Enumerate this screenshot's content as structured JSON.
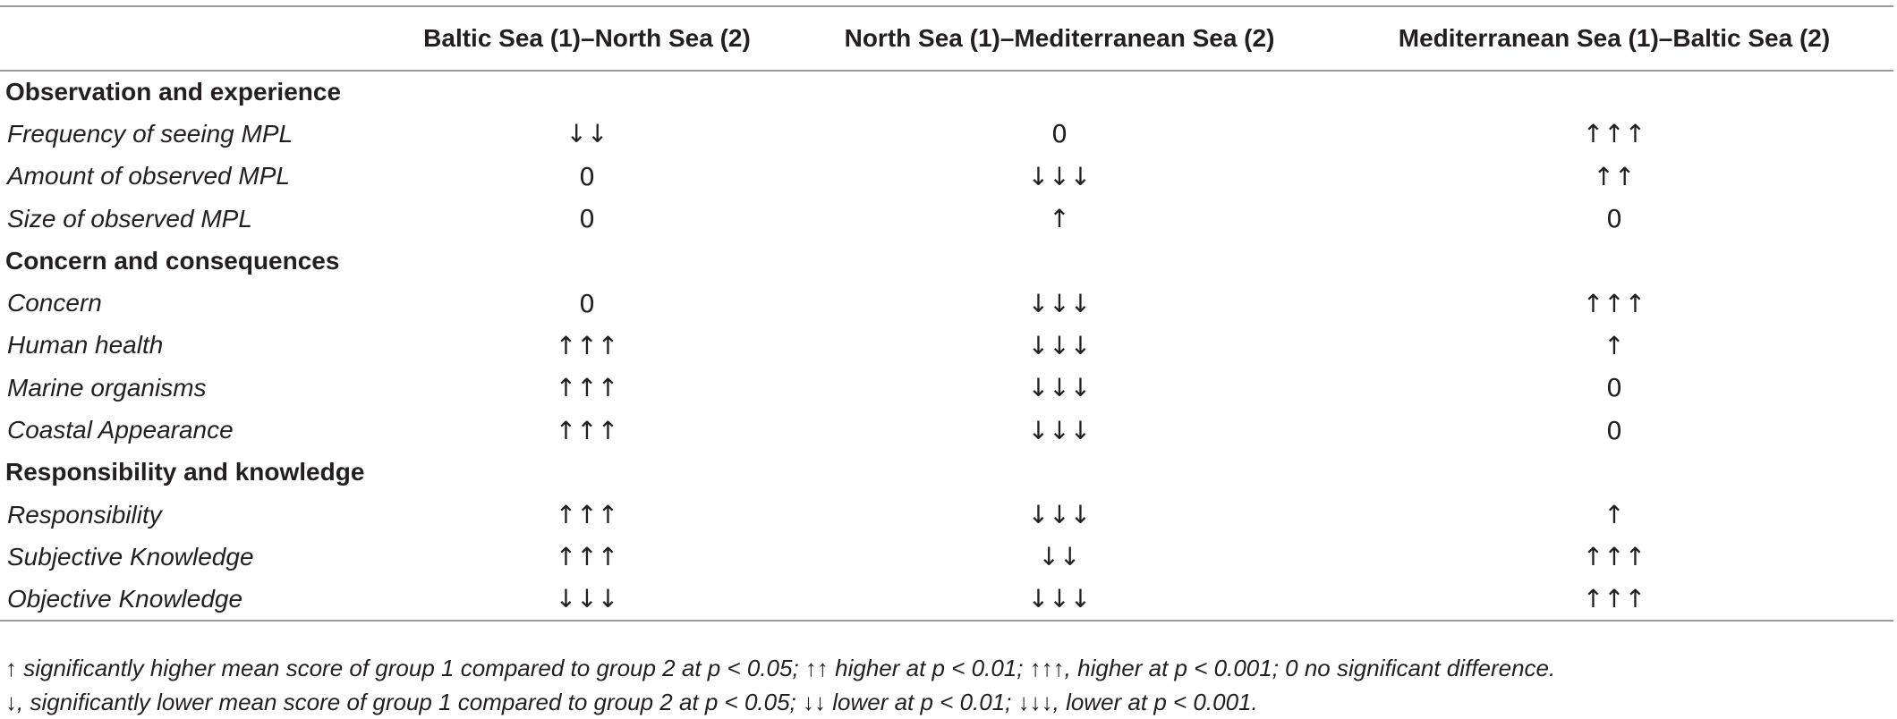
{
  "table": {
    "columns": [
      "",
      "Baltic Sea (1)–North Sea (2)",
      "North Sea (1)–Mediterranean Sea (2)",
      "Mediterranean Sea (1)–Baltic Sea (2)"
    ],
    "sections": [
      {
        "title": "Observation and experience",
        "rows": [
          {
            "label": "Frequency of seeing MPL",
            "values": [
              "↓↓",
              "0",
              "↑↑↑"
            ]
          },
          {
            "label": "Amount of observed MPL",
            "values": [
              "0",
              "↓↓↓",
              "↑↑"
            ]
          },
          {
            "label": "Size of observed MPL",
            "values": [
              "0",
              "↑",
              "0"
            ]
          }
        ]
      },
      {
        "title": "Concern and consequences",
        "rows": [
          {
            "label": "Concern",
            "values": [
              "0",
              "↓↓↓",
              "↑↑↑"
            ]
          },
          {
            "label": "Human health",
            "values": [
              "↑↑↑",
              "↓↓↓",
              "↑"
            ]
          },
          {
            "label": "Marine organisms",
            "values": [
              "↑↑↑",
              "↓↓↓",
              "0"
            ]
          },
          {
            "label": "Coastal Appearance",
            "values": [
              "↑↑↑",
              "↓↓↓",
              "0"
            ]
          }
        ]
      },
      {
        "title": "Responsibility and knowledge",
        "rows": [
          {
            "label": "Responsibility",
            "values": [
              "↑↑↑",
              "↓↓↓",
              "↑"
            ]
          },
          {
            "label": "Subjective Knowledge",
            "values": [
              "↑↑↑",
              "↓↓",
              "↑↑↑"
            ]
          },
          {
            "label": "Objective Knowledge",
            "values": [
              "↓↓↓",
              "↓↓↓",
              "↑↑↑"
            ]
          }
        ]
      }
    ]
  },
  "footnotes": [
    "↑ significantly higher mean score of group 1 compared to group 2 at p < 0.05; ↑↑ higher at p < 0.01; ↑↑↑, higher at p < 0.001; 0 no significant difference.",
    "↓, significantly lower mean score of group 1 compared to group 2 at p < 0.05; ↓↓ lower at p < 0.01; ↓↓↓, lower at p < 0.001."
  ]
}
